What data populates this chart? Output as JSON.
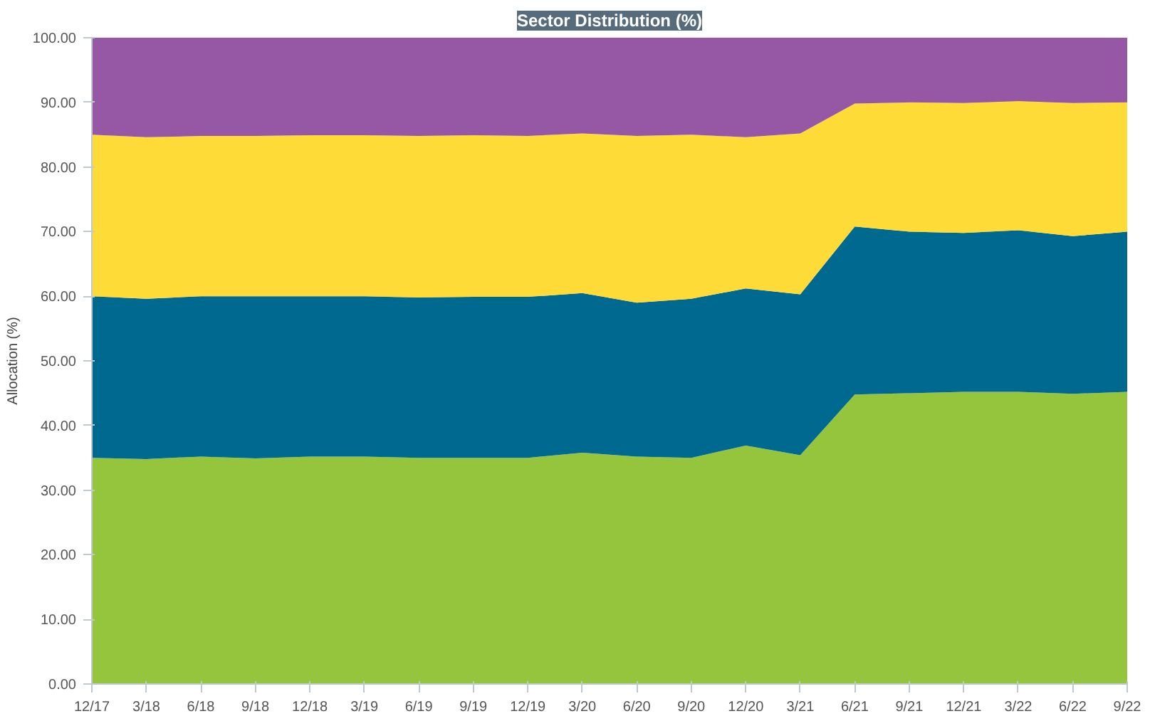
{
  "chart_data": {
    "type": "area",
    "title": "Sector Distribution (%)",
    "ylabel": "Allocation (%)",
    "stacked": true,
    "categories": [
      "12/17",
      "3/18",
      "6/18",
      "9/18",
      "12/18",
      "3/19",
      "6/19",
      "9/19",
      "12/19",
      "3/20",
      "6/20",
      "9/20",
      "12/20",
      "3/21",
      "6/21",
      "9/21",
      "12/21",
      "3/22",
      "6/22",
      "9/22"
    ],
    "series": [
      {
        "color": "#95c43d",
        "values": [
          35,
          34.8,
          35.2,
          34.9,
          35.2,
          35.2,
          35,
          35,
          35,
          35.8,
          35.2,
          35,
          36.9,
          35.4,
          44.8,
          45,
          45.2,
          45.2,
          44.9,
          45.2
        ]
      },
      {
        "color": "#006990",
        "values": [
          25,
          24.8,
          24.8,
          25.1,
          24.8,
          24.8,
          24.8,
          24.9,
          24.9,
          24.7,
          23.8,
          24.6,
          24.3,
          24.9,
          26,
          25,
          24.6,
          25,
          24.4,
          24.8
        ]
      },
      {
        "color": "#fedb37",
        "values": [
          25,
          25,
          24.8,
          24.8,
          24.9,
          24.9,
          25,
          25,
          24.9,
          24.7,
          25.8,
          25.4,
          23.4,
          24.9,
          19,
          20,
          20.1,
          20,
          20.6,
          20
        ]
      },
      {
        "color": "#9657a5",
        "values": [
          15,
          15.4,
          15.2,
          15.2,
          15.1,
          15.1,
          15.2,
          15.1,
          15.2,
          14.8,
          15.2,
          15,
          15.4,
          14.8,
          10.2,
          10,
          10.1,
          9.8,
          10.1,
          10
        ]
      }
    ],
    "ylim": [
      0,
      100
    ],
    "yticks": [
      {
        "value": 0,
        "label": "0.00"
      },
      {
        "value": 10,
        "label": "10.00"
      },
      {
        "value": 20,
        "label": "20.00"
      },
      {
        "value": 30,
        "label": "30.00"
      },
      {
        "value": 40,
        "label": "40.00"
      },
      {
        "value": 50,
        "label": "50.00"
      },
      {
        "value": 60,
        "label": "60.00"
      },
      {
        "value": 70,
        "label": "70.00"
      },
      {
        "value": 80,
        "label": "80.00"
      },
      {
        "value": 90,
        "label": "90.00"
      },
      {
        "value": 100,
        "label": "100.00"
      }
    ],
    "grid": "y"
  }
}
